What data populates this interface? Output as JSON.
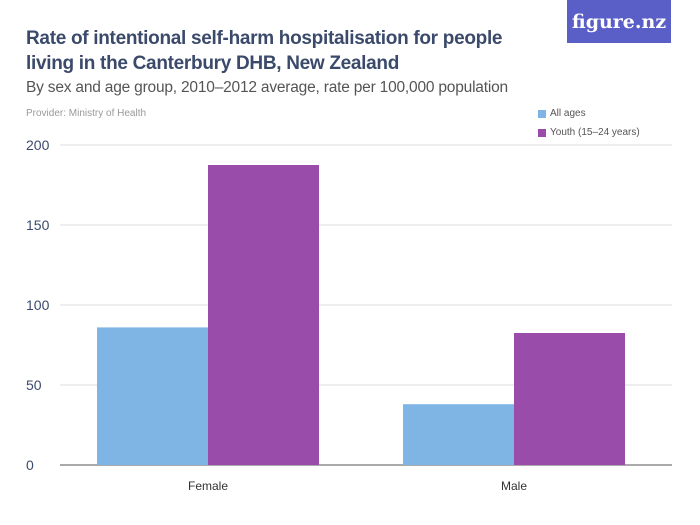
{
  "logo": "figure.nz",
  "chart_data": {
    "type": "bar",
    "title": "Rate of intentional self-harm hospitalisation for people living in the Canterbury DHB, New Zealand",
    "subtitle": "By sex and age group, 2010–2012 average, rate per 100,000 population",
    "provider": "Provider: Ministry of Health",
    "categories": [
      "Female",
      "Male"
    ],
    "series": [
      {
        "name": "All ages",
        "values": [
          86,
          38
        ],
        "color": "#7fb5e4"
      },
      {
        "name": "Youth (15–24 years)",
        "values": [
          187.5,
          82.5
        ],
        "color": "#994ca9"
      }
    ],
    "ylim": [
      0,
      200
    ],
    "yticks": [
      0,
      50,
      100,
      150,
      200
    ],
    "grid": true,
    "legend": "top-right"
  }
}
